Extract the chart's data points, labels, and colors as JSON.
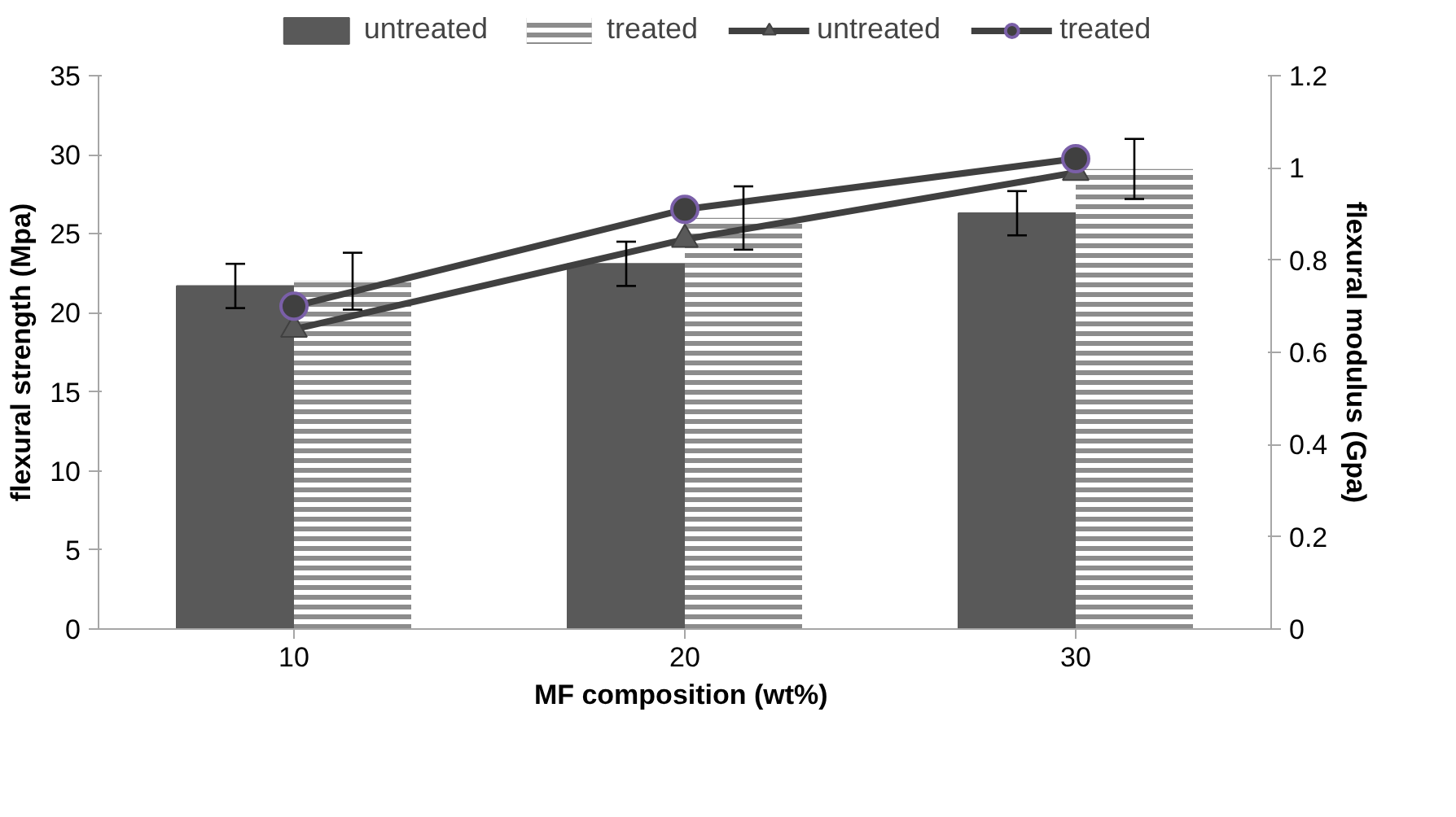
{
  "chart_data": {
    "type": "bar",
    "categories": [
      "10",
      "20",
      "30"
    ],
    "xlabel": "MF composition  (wt%)",
    "ylabel": "flexural strength (Mpa)",
    "y2label": "flexural modulus (Gpa)",
    "ylim": [
      0,
      35
    ],
    "yticks": [
      0,
      5,
      10,
      15,
      20,
      25,
      30,
      35
    ],
    "y2lim": [
      0,
      1.2
    ],
    "y2ticks": [
      0,
      0.2,
      0.4,
      0.6,
      0.8,
      1,
      1.2
    ],
    "grid": false,
    "legend": "top",
    "series": [
      {
        "name": "untreated",
        "color": "#595959",
        "values": [
          21.7,
          23.1,
          26.3
        ],
        "errors": [
          1.4,
          1.4,
          1.4
        ]
      },
      {
        "name": "treated",
        "color": "#8c8c8c",
        "values": [
          22.0,
          26.0,
          29.1
        ],
        "errors": [
          1.8,
          2.0,
          1.9
        ]
      },
      {
        "name": "untreated",
        "type": "line",
        "axis": "y2",
        "color": "#404040",
        "marker": "triangle",
        "values": [
          0.65,
          0.845,
          0.99
        ]
      },
      {
        "name": "treated",
        "type": "line",
        "axis": "y2",
        "color": "#404040",
        "marker": "circle",
        "values": [
          0.7,
          0.91,
          1.02
        ]
      }
    ]
  }
}
